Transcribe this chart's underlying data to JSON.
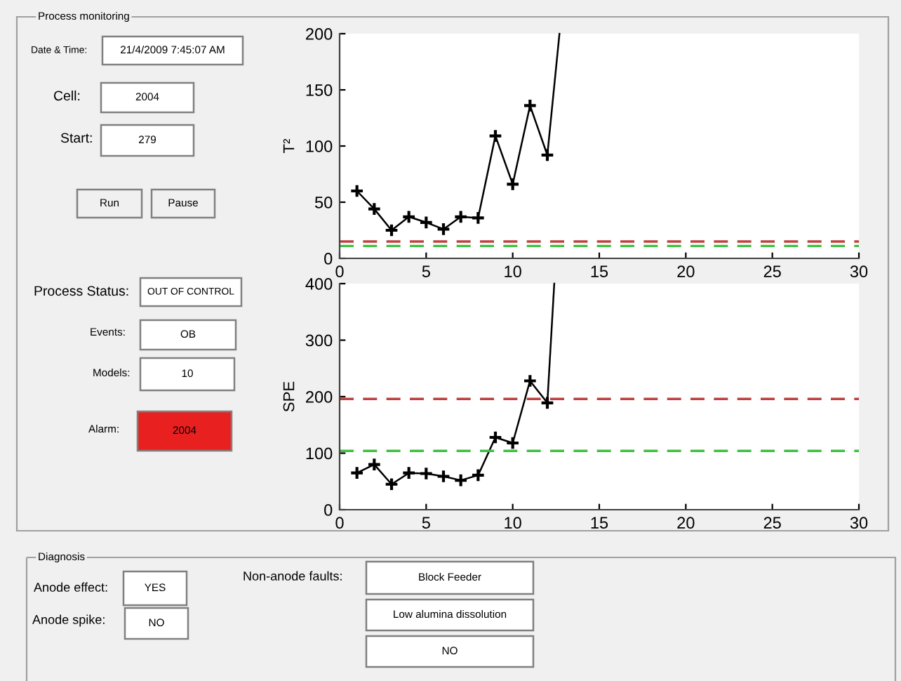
{
  "chart_data": [
    {
      "type": "other",
      "annotations": [
        "Process monitoring",
        "Date & Time:",
        "21/4/2009 7:45:07 AM",
        "Cell:",
        "2004",
        "Start:",
        "279",
        "Run",
        "Pause",
        "Process Status:",
        "OUT OF CONTROL",
        "Events:",
        "OB",
        "Models:",
        "10",
        "Alarm:",
        "2004",
        "Diagnosis",
        "Anode effect:",
        "YES",
        "Anode spike:",
        "NO",
        "Non-anode faults:",
        "Block Feeder",
        "Low alumina dissolution",
        "NO"
      ]
    },
    {
      "type": "line",
      "ylabel": "T²",
      "x": [
        1,
        2,
        3,
        4,
        5,
        6,
        7,
        8,
        9,
        10,
        11,
        12
      ],
      "marker": "cross",
      "line_style": "solid",
      "series": [
        {
          "color": "#000000",
          "values": [
            60,
            44,
            25,
            37,
            32,
            26,
            37,
            36,
            109,
            66,
            136,
            92
          ]
        },
        {
          "color": "#000000",
          "x": [
            12,
            12.7
          ],
          "values": [
            92,
            200
          ],
          "marker": "none"
        }
      ],
      "xlim": [
        0,
        30
      ],
      "xticks": [
        0,
        5,
        10,
        15,
        20,
        25,
        30
      ],
      "ylim": [
        0,
        200
      ],
      "yticks": [
        0,
        50,
        100,
        150,
        200
      ],
      "ref_lines": [
        {
          "axis": "y",
          "value": 15,
          "color": "#c04040",
          "line_style": "dashed"
        },
        {
          "axis": "y",
          "value": 11,
          "color": "#40c040",
          "line_style": "dashed"
        }
      ]
    },
    {
      "type": "line",
      "ylabel": "SPE",
      "x": [
        1,
        2,
        3,
        4,
        5,
        6,
        7,
        8,
        9,
        10,
        11,
        12
      ],
      "marker": "cross",
      "line_style": "solid",
      "series": [
        {
          "color": "#000000",
          "values": [
            65,
            80,
            45,
            65,
            64,
            59,
            52,
            61,
            128,
            118,
            228,
            189
          ]
        },
        {
          "color": "#000000",
          "x": [
            12,
            12.4
          ],
          "values": [
            189,
            400
          ],
          "marker": "none"
        }
      ],
      "xlim": [
        0,
        30
      ],
      "xticks": [
        0,
        5,
        10,
        15,
        20,
        25,
        30
      ],
      "ylim": [
        0,
        400
      ],
      "yticks": [
        0,
        100,
        200,
        300,
        400
      ],
      "ref_lines": [
        {
          "axis": "y",
          "value": 196,
          "color": "#c04040",
          "line_style": "dashed"
        },
        {
          "axis": "y",
          "value": 104,
          "color": "#40c040",
          "line_style": "dashed"
        }
      ]
    }
  ]
}
